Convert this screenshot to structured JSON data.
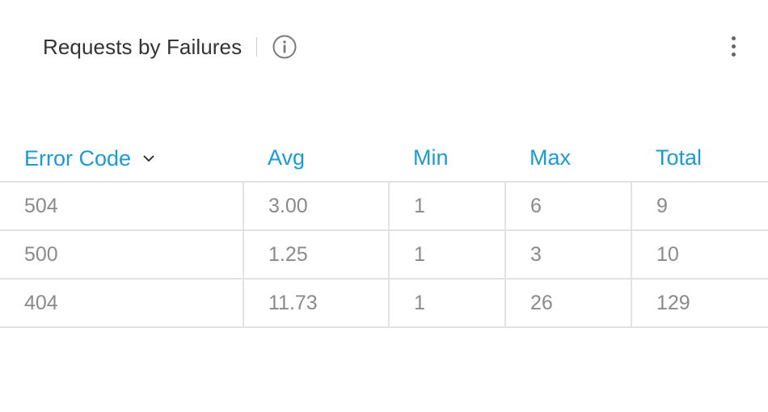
{
  "widget": {
    "title": "Requests by Failures",
    "info_icon": "info-circle-icon",
    "menu_icon": "kebab-menu-icon"
  },
  "table": {
    "columns": [
      "Error Code",
      "Avg",
      "Min",
      "Max",
      "Total"
    ],
    "sorted_column": "Error Code",
    "sort_icon": "chevron-down-icon",
    "rows": [
      [
        "504",
        "3.00",
        "1",
        "6",
        "9"
      ],
      [
        "500",
        "1.25",
        "1",
        "3",
        "10"
      ],
      [
        "404",
        "11.73",
        "1",
        "26",
        "129"
      ]
    ]
  },
  "colors": {
    "header_text": "#1a9bd1",
    "cell_text": "#8a8a8a",
    "title_text": "#333333",
    "grid_line": "#e2e2e2"
  }
}
